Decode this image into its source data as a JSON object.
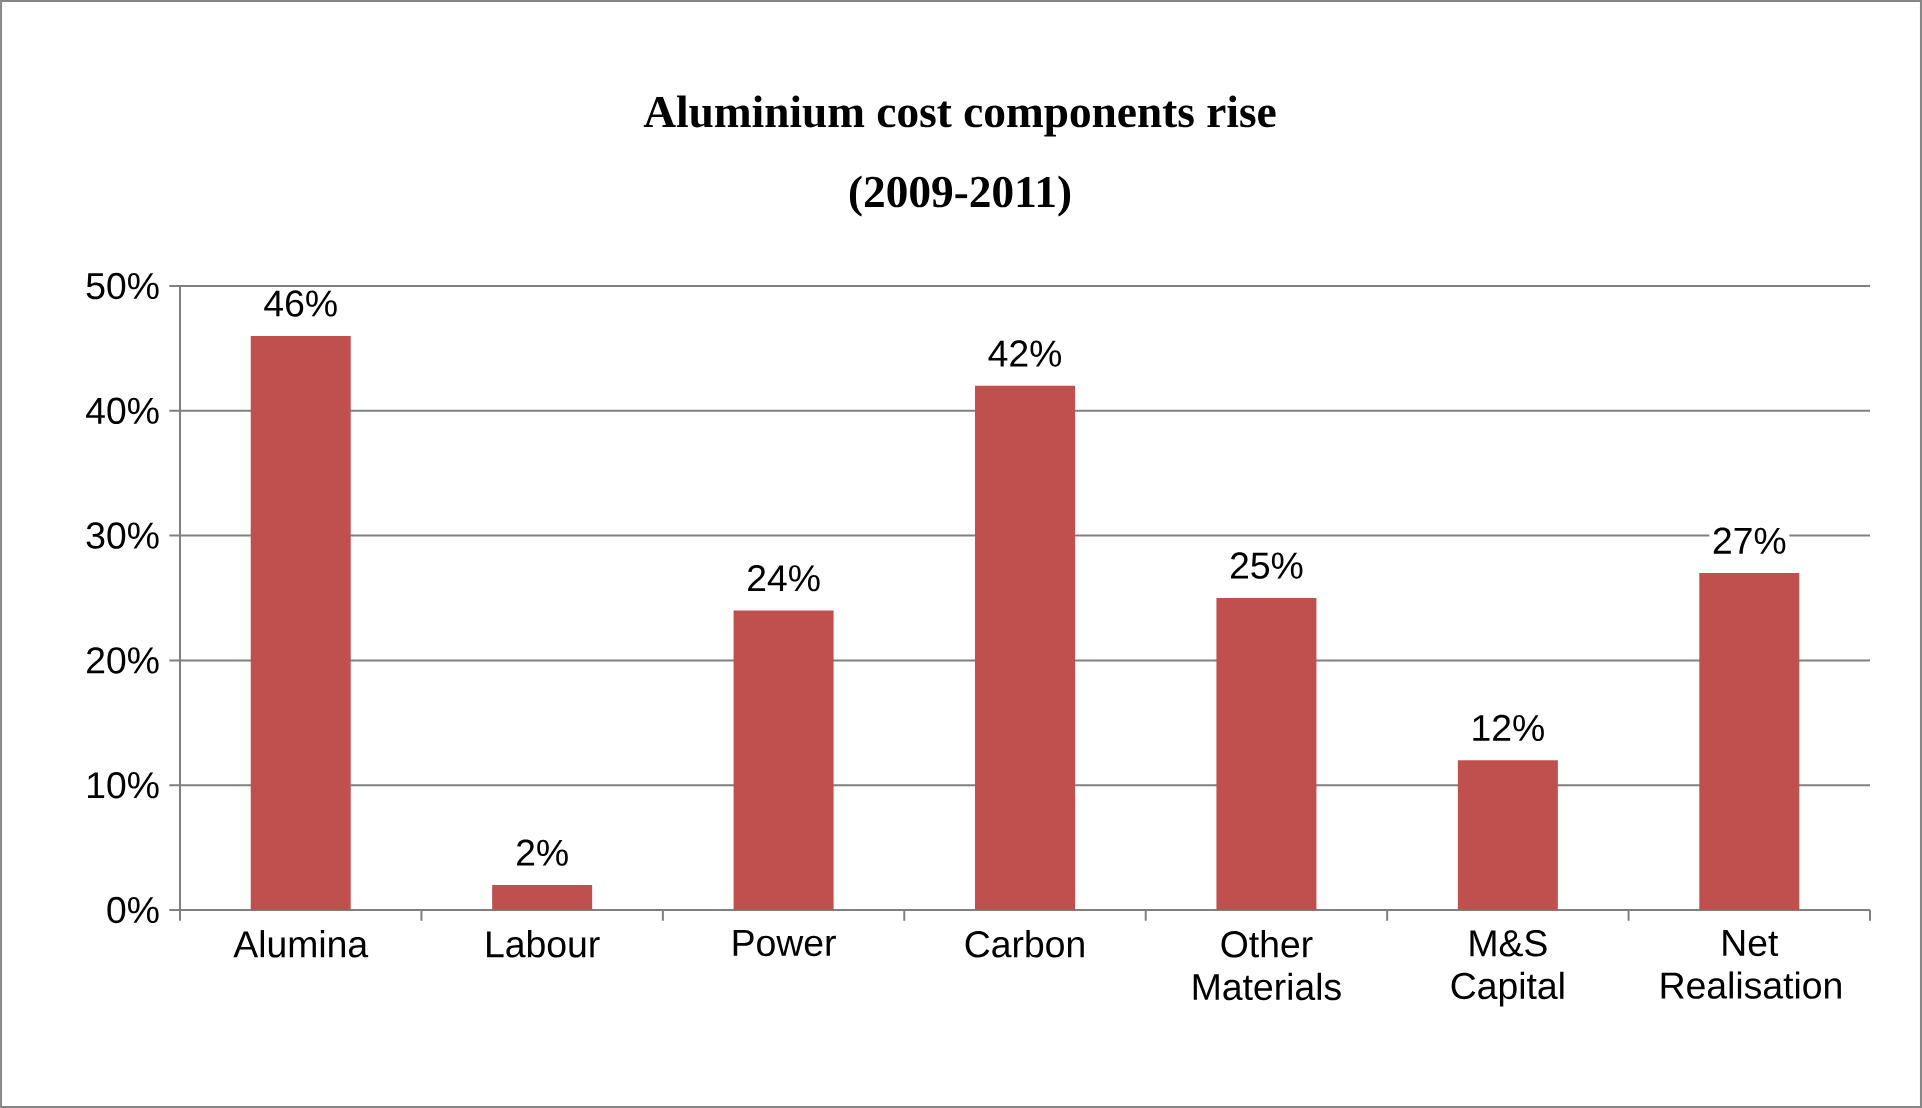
{
  "chart_data": {
    "type": "bar",
    "title": "Aluminium cost components rise",
    "subtitle": "(2009-2011)",
    "categories": [
      "Alumina",
      "Labour",
      "Power",
      "Carbon",
      "Other Materials",
      "M&S Capital",
      "Net Realisation"
    ],
    "values": [
      46,
      2,
      24,
      42,
      25,
      12,
      27
    ],
    "value_labels": [
      "46%",
      "2%",
      "24%",
      "42%",
      "25%",
      "12%",
      "27%"
    ],
    "color": "#c0504d",
    "ylim": [
      0,
      50
    ],
    "yticks": [
      {
        "value": 0,
        "label": "0%"
      },
      {
        "value": 10,
        "label": "10%"
      },
      {
        "value": 20,
        "label": "20%"
      },
      {
        "value": 30,
        "label": "30%"
      },
      {
        "value": 40,
        "label": "40%"
      },
      {
        "value": 50,
        "label": "50%"
      }
    ],
    "grid": "y"
  }
}
